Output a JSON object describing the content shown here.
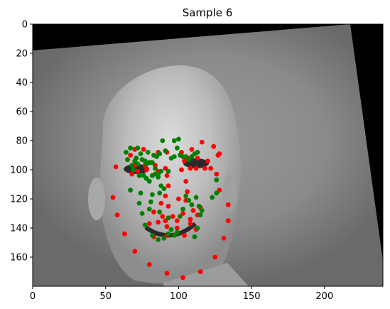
{
  "chart_data": {
    "type": "scatter",
    "title": "Sample 6",
    "xlabel": "",
    "ylabel": "",
    "xlim": [
      0,
      240
    ],
    "ylim": [
      180,
      0
    ],
    "y_inverted": true,
    "x_ticks": [
      0,
      50,
      100,
      150,
      200
    ],
    "y_ticks": [
      0,
      20,
      40,
      60,
      80,
      100,
      120,
      140,
      160
    ],
    "grid": false,
    "legend": "none",
    "background": "grayscale face photograph (rotated image with black borders)",
    "series": [
      {
        "color": "#ff0000",
        "points": [
          [
            57,
            98
          ],
          [
            55,
            119
          ],
          [
            58,
            131
          ],
          [
            63,
            144
          ],
          [
            70,
            156
          ],
          [
            80,
            165
          ],
          [
            92,
            171
          ],
          [
            103,
            174
          ],
          [
            115,
            170
          ],
          [
            125,
            160
          ],
          [
            131,
            147
          ],
          [
            134,
            135
          ],
          [
            134,
            124
          ],
          [
            128,
            114
          ],
          [
            126,
            103
          ],
          [
            127,
            90
          ],
          [
            67,
            90
          ],
          [
            70,
            86
          ],
          [
            76,
            86
          ],
          [
            86,
            88
          ],
          [
            92,
            88
          ],
          [
            102,
            88
          ],
          [
            109,
            86
          ],
          [
            116,
            81
          ],
          [
            124,
            84
          ],
          [
            128,
            89
          ],
          [
            68,
            103
          ],
          [
            72,
            101
          ],
          [
            78,
            100
          ],
          [
            86,
            101
          ],
          [
            91,
            99
          ],
          [
            84,
            97
          ],
          [
            77,
            97
          ],
          [
            70,
            97
          ],
          [
            104,
            94
          ],
          [
            108,
            99
          ],
          [
            112,
            99
          ],
          [
            118,
            99
          ],
          [
            122,
            99
          ],
          [
            120,
            94
          ],
          [
            113,
            92
          ],
          [
            106,
            92
          ],
          [
            92,
            104
          ],
          [
            93,
            111
          ],
          [
            91,
            118
          ],
          [
            88,
            123
          ],
          [
            93,
            125
          ],
          [
            100,
            120
          ],
          [
            105,
            121
          ],
          [
            106,
            115
          ],
          [
            105,
            108
          ],
          [
            102,
            100
          ],
          [
            83,
            129
          ],
          [
            86,
            136
          ],
          [
            92,
            139
          ],
          [
            99,
            140
          ],
          [
            108,
            137
          ],
          [
            113,
            131
          ],
          [
            115,
            126
          ],
          [
            112,
            141
          ],
          [
            104,
            145
          ],
          [
            92,
            145
          ],
          [
            83,
            146
          ],
          [
            80,
            137
          ],
          [
            89,
            132
          ],
          [
            96,
            132
          ],
          [
            103,
            130
          ],
          [
            110,
            128
          ],
          [
            108,
            134
          ],
          [
            99,
            135
          ],
          [
            91,
            135
          ]
        ]
      },
      {
        "color": "#008000",
        "points": [
          [
            64,
            88
          ],
          [
            65,
            93
          ],
          [
            67,
            85
          ],
          [
            69,
            100
          ],
          [
            72,
            85
          ],
          [
            71,
            92
          ],
          [
            74,
            89
          ],
          [
            77,
            94
          ],
          [
            79,
            88
          ],
          [
            81,
            95
          ],
          [
            83,
            90
          ],
          [
            85,
            91
          ],
          [
            87,
            89
          ],
          [
            89,
            80
          ],
          [
            91,
            87
          ],
          [
            95,
            92
          ],
          [
            97,
            80
          ],
          [
            99,
            85
          ],
          [
            100,
            79
          ],
          [
            101,
            90
          ],
          [
            103,
            91
          ],
          [
            105,
            91
          ],
          [
            107,
            93
          ],
          [
            109,
            91
          ],
          [
            111,
            89
          ],
          [
            113,
            88
          ],
          [
            68,
            97
          ],
          [
            70,
            94
          ],
          [
            72,
            96
          ],
          [
            75,
            93
          ],
          [
            78,
            96
          ],
          [
            80,
            95
          ],
          [
            82,
            95
          ],
          [
            73,
            104
          ],
          [
            76,
            104
          ],
          [
            78,
            106
          ],
          [
            80,
            108
          ],
          [
            82,
            104
          ],
          [
            84,
            103
          ],
          [
            86,
            105
          ],
          [
            88,
            101
          ],
          [
            84,
            99
          ],
          [
            67,
            114
          ],
          [
            74,
            116
          ],
          [
            73,
            123
          ],
          [
            75,
            130
          ],
          [
            77,
            138
          ],
          [
            80,
            127
          ],
          [
            81,
            122
          ],
          [
            82,
            117
          ],
          [
            87,
            116
          ],
          [
            88,
            111
          ],
          [
            86,
            103
          ],
          [
            90,
            113
          ],
          [
            93,
            101
          ],
          [
            97,
            91
          ],
          [
            82,
            145
          ],
          [
            86,
            148
          ],
          [
            90,
            147
          ],
          [
            93,
            144
          ],
          [
            95,
            141
          ],
          [
            97,
            145
          ],
          [
            99,
            143
          ],
          [
            101,
            132
          ],
          [
            103,
            127
          ],
          [
            105,
            118
          ],
          [
            107,
            121
          ],
          [
            109,
            124
          ],
          [
            111,
            146
          ],
          [
            113,
            140
          ],
          [
            115,
            131
          ],
          [
            116,
            128
          ],
          [
            114,
            125
          ],
          [
            112,
            119
          ],
          [
            123,
            119
          ],
          [
            126,
            107
          ],
          [
            126,
            116
          ],
          [
            87,
            129
          ],
          [
            93,
            133
          ]
        ]
      }
    ]
  }
}
